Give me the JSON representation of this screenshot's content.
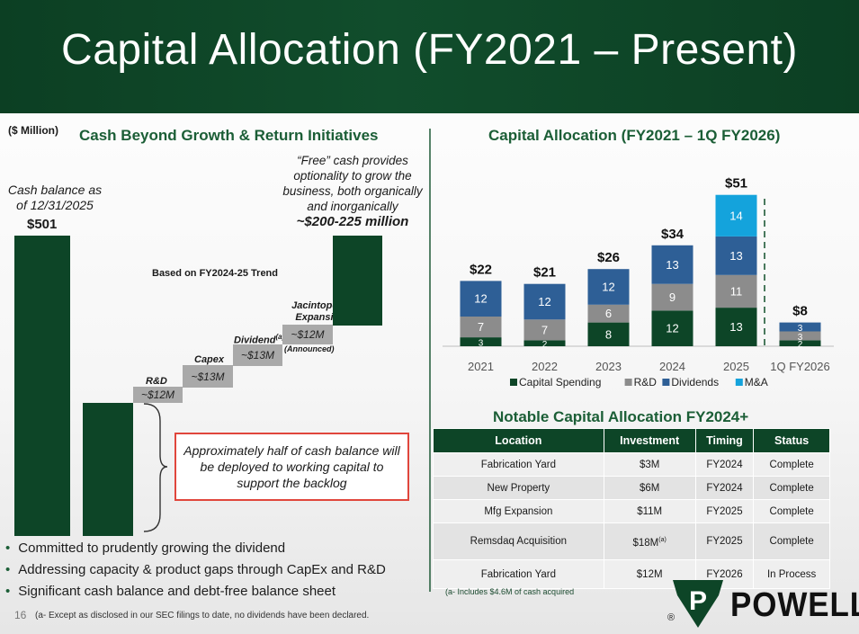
{
  "slide": {
    "title": "Capital Allocation (FY2021 – Present)",
    "page_number": "16",
    "footnote": "(a- Except as disclosed in our SEC filings to date, no dividends have been declared.",
    "logo_text": "POWELL",
    "logo_letter": "P",
    "registered_mark": "®"
  },
  "left": {
    "units": "($ Million)",
    "heading": "Cash Beyond Growth & Return Initiatives",
    "cash_label": "Cash balance as of 12/31/2025",
    "cash_value": "$501",
    "trend_label": "Based on FY2024-25 Trend",
    "steps": [
      {
        "label": "R&D",
        "value": "~$12M"
      },
      {
        "label": "Capex",
        "value": "~$13M"
      },
      {
        "label": "Dividend",
        "sup": "(a)",
        "value": "~$13M"
      },
      {
        "label": "Jacintoport Expansion",
        "value": "~$12M",
        "note": "(Announced)"
      }
    ],
    "free_cash_note": "“Free” cash provides optionality to grow the business, both organically and inorganically",
    "free_cash_range": "~$200-225 million",
    "callout": "Approximately half of cash balance will be deployed to working capital to support the backlog",
    "bullets": [
      "Committed to prudently growing the dividend",
      "Addressing capacity & product gaps through CapEx and R&D",
      "Significant cash balance and debt-free balance sheet"
    ]
  },
  "right": {
    "heading": "Capital Allocation (FY2021 – 1Q FY2026)",
    "table_heading": "Notable Capital Allocation FY2024+",
    "table": {
      "columns": [
        "Location",
        "Investment",
        "Timing",
        "Status"
      ],
      "rows": [
        [
          "Fabrication Yard",
          "$3M",
          "FY2024",
          "Complete"
        ],
        [
          "New Property",
          "$6M",
          "FY2024",
          "Complete"
        ],
        [
          "Mfg Expansion",
          "$11M",
          "FY2025",
          "Complete"
        ],
        [
          "Remsdaq Acquisition",
          "$18M",
          "FY2025",
          "Complete"
        ],
        [
          "Fabrication Yard",
          "$12M",
          "FY2026",
          "In Process"
        ]
      ],
      "remsdaq_sup": "(a)"
    },
    "table_note": "(a- Includes $4.6M of cash acquired"
  },
  "colors": {
    "brand_green": "#0d4527",
    "heading_green": "#1b5e36",
    "capital_spending": "#0d4527",
    "rnd": "#8c8c8c",
    "dividends": "#2e5f96",
    "mna": "#14a3dc",
    "callout_border": "#e0463c"
  },
  "chart_data": {
    "type": "bar",
    "stacked": true,
    "categories": [
      "2021",
      "2022",
      "2023",
      "2024",
      "2025",
      "1Q FY2026"
    ],
    "series": [
      {
        "name": "Capital Spending",
        "color": "#0d4527",
        "values": [
          3,
          2,
          8,
          12,
          13,
          2
        ]
      },
      {
        "name": "R&D",
        "color": "#8c8c8c",
        "values": [
          7,
          7,
          6,
          9,
          11,
          3
        ]
      },
      {
        "name": "Dividends",
        "color": "#2e5f96",
        "values": [
          12,
          12,
          12,
          13,
          13,
          3
        ]
      },
      {
        "name": "M&A",
        "color": "#14a3dc",
        "values": [
          0,
          0,
          0,
          0,
          14,
          0
        ]
      }
    ],
    "totals": [
      "$22",
      "$21",
      "$26",
      "$34",
      "$51",
      "$8"
    ],
    "legend_position": "bottom",
    "grid": false,
    "ylim": [
      0,
      55
    ]
  }
}
